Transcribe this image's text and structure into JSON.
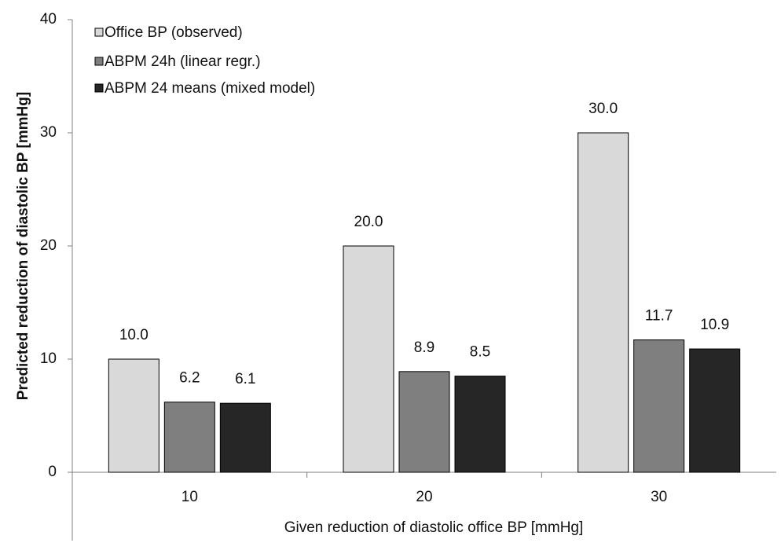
{
  "chart_data": {
    "type": "bar",
    "title": "",
    "xlabel": "Given reduction of diastolic office BP [mmHg]",
    "ylabel": "Predicted reduction of diastolic BP [mmHg]",
    "ylim": [
      0,
      40
    ],
    "yticks": [
      0,
      10,
      20,
      30,
      40
    ],
    "categories": [
      "10",
      "20",
      "30"
    ],
    "series": [
      {
        "name": "Office BP (observed)",
        "values": [
          10.0,
          20.0,
          30.0
        ],
        "labels": [
          "10.0",
          "20.0",
          "30.0"
        ],
        "color": "#d9d9d9"
      },
      {
        "name": "ABPM 24h (linear regr.)",
        "values": [
          6.2,
          8.9,
          11.7
        ],
        "labels": [
          "6.2",
          "8.9",
          "11.7"
        ],
        "color": "#7f7f7f"
      },
      {
        "name": "ABPM 24 means (mixed model)",
        "values": [
          6.1,
          8.5,
          10.9
        ],
        "labels": [
          "6.1",
          "8.5",
          "10.9"
        ],
        "color": "#262626"
      }
    ],
    "grid": false,
    "legend_position": "top-left"
  }
}
